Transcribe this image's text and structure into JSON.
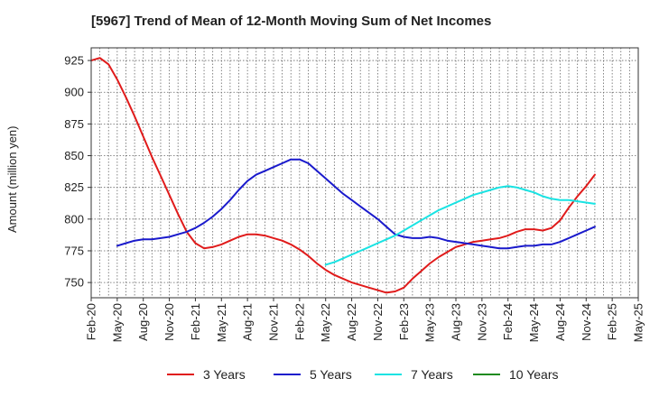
{
  "chart_data": {
    "type": "line",
    "title": "[5967]  Trend of Mean of 12-Month Moving Sum of Net Incomes",
    "xlabel": "",
    "ylabel": "Amount (million yen)",
    "ylim": [
      738,
      935
    ],
    "y_ticks": [
      750,
      775,
      800,
      825,
      850,
      875,
      900,
      925
    ],
    "x_tick_labels": [
      "Feb-20",
      "May-20",
      "Aug-20",
      "Nov-20",
      "Feb-21",
      "May-21",
      "Aug-21",
      "Nov-21",
      "Feb-22",
      "May-22",
      "Aug-22",
      "Nov-22",
      "Feb-23",
      "May-23",
      "Aug-23",
      "Nov-23",
      "Feb-24",
      "May-24",
      "Aug-24",
      "Nov-24",
      "Feb-25",
      "May-25"
    ],
    "x_start": "2020-02",
    "x_end": "2025-05",
    "grid": true,
    "legend_placement": "bottom",
    "series": [
      {
        "name": "3 Years",
        "color": "#e01b1b",
        "points": [
          [
            "2020-02",
            925
          ],
          [
            "2020-03",
            927
          ],
          [
            "2020-04",
            922
          ],
          [
            "2020-05",
            910
          ],
          [
            "2020-06",
            896
          ],
          [
            "2020-07",
            881
          ],
          [
            "2020-08",
            865
          ],
          [
            "2020-09",
            849
          ],
          [
            "2020-10",
            834
          ],
          [
            "2020-11",
            819
          ],
          [
            "2020-12",
            804
          ],
          [
            "2021-01",
            790
          ],
          [
            "2021-02",
            781
          ],
          [
            "2021-03",
            777
          ],
          [
            "2021-04",
            778
          ],
          [
            "2021-05",
            780
          ],
          [
            "2021-06",
            783
          ],
          [
            "2021-07",
            786
          ],
          [
            "2021-08",
            788
          ],
          [
            "2021-09",
            788
          ],
          [
            "2021-10",
            787
          ],
          [
            "2021-11",
            785
          ],
          [
            "2021-12",
            783
          ],
          [
            "2022-01",
            780
          ],
          [
            "2022-02",
            776
          ],
          [
            "2022-03",
            771
          ],
          [
            "2022-04",
            765
          ],
          [
            "2022-05",
            760
          ],
          [
            "2022-06",
            756
          ],
          [
            "2022-07",
            753
          ],
          [
            "2022-08",
            750
          ],
          [
            "2022-09",
            748
          ],
          [
            "2022-10",
            746
          ],
          [
            "2022-11",
            744
          ],
          [
            "2022-12",
            742
          ],
          [
            "2023-01",
            743
          ],
          [
            "2023-02",
            746
          ],
          [
            "2023-03",
            753
          ],
          [
            "2023-04",
            759
          ],
          [
            "2023-05",
            765
          ],
          [
            "2023-06",
            770
          ],
          [
            "2023-07",
            774
          ],
          [
            "2023-08",
            778
          ],
          [
            "2023-09",
            780
          ],
          [
            "2023-10",
            782
          ],
          [
            "2023-11",
            783
          ],
          [
            "2023-12",
            784
          ],
          [
            "2024-01",
            785
          ],
          [
            "2024-02",
            787
          ],
          [
            "2024-03",
            790
          ],
          [
            "2024-04",
            792
          ],
          [
            "2024-05",
            792
          ],
          [
            "2024-06",
            791
          ],
          [
            "2024-07",
            793
          ],
          [
            "2024-08",
            799
          ],
          [
            "2024-09",
            809
          ],
          [
            "2024-10",
            818
          ],
          [
            "2024-11",
            826
          ],
          [
            "2024-12",
            835
          ]
        ]
      },
      {
        "name": "5 Years",
        "color": "#1a1acc",
        "points": [
          [
            "2020-05",
            779
          ],
          [
            "2020-06",
            781
          ],
          [
            "2020-07",
            783
          ],
          [
            "2020-08",
            784
          ],
          [
            "2020-09",
            784
          ],
          [
            "2020-10",
            785
          ],
          [
            "2020-11",
            786
          ],
          [
            "2020-12",
            788
          ],
          [
            "2021-01",
            790
          ],
          [
            "2021-02",
            793
          ],
          [
            "2021-03",
            797
          ],
          [
            "2021-04",
            802
          ],
          [
            "2021-05",
            808
          ],
          [
            "2021-06",
            815
          ],
          [
            "2021-07",
            823
          ],
          [
            "2021-08",
            830
          ],
          [
            "2021-09",
            835
          ],
          [
            "2021-10",
            838
          ],
          [
            "2021-11",
            841
          ],
          [
            "2021-12",
            844
          ],
          [
            "2022-01",
            847
          ],
          [
            "2022-02",
            847
          ],
          [
            "2022-03",
            844
          ],
          [
            "2022-04",
            838
          ],
          [
            "2022-05",
            832
          ],
          [
            "2022-06",
            826
          ],
          [
            "2022-07",
            820
          ],
          [
            "2022-08",
            815
          ],
          [
            "2022-09",
            810
          ],
          [
            "2022-10",
            805
          ],
          [
            "2022-11",
            800
          ],
          [
            "2022-12",
            794
          ],
          [
            "2023-01",
            788
          ],
          [
            "2023-02",
            786
          ],
          [
            "2023-03",
            785
          ],
          [
            "2023-04",
            785
          ],
          [
            "2023-05",
            786
          ],
          [
            "2023-06",
            785
          ],
          [
            "2023-07",
            783
          ],
          [
            "2023-08",
            782
          ],
          [
            "2023-09",
            781
          ],
          [
            "2023-10",
            780
          ],
          [
            "2023-11",
            779
          ],
          [
            "2023-12",
            778
          ],
          [
            "2024-01",
            777
          ],
          [
            "2024-02",
            777
          ],
          [
            "2024-03",
            778
          ],
          [
            "2024-04",
            779
          ],
          [
            "2024-05",
            779
          ],
          [
            "2024-06",
            780
          ],
          [
            "2024-07",
            780
          ],
          [
            "2024-08",
            782
          ],
          [
            "2024-09",
            785
          ],
          [
            "2024-10",
            788
          ],
          [
            "2024-11",
            791
          ],
          [
            "2024-12",
            794
          ]
        ]
      },
      {
        "name": "7 Years",
        "color": "#19e3e3",
        "points": [
          [
            "2022-05",
            764
          ],
          [
            "2022-06",
            766
          ],
          [
            "2022-07",
            769
          ],
          [
            "2022-08",
            772
          ],
          [
            "2022-09",
            775
          ],
          [
            "2022-10",
            778
          ],
          [
            "2022-11",
            781
          ],
          [
            "2022-12",
            784
          ],
          [
            "2023-01",
            787
          ],
          [
            "2023-02",
            791
          ],
          [
            "2023-03",
            795
          ],
          [
            "2023-04",
            799
          ],
          [
            "2023-05",
            803
          ],
          [
            "2023-06",
            807
          ],
          [
            "2023-07",
            810
          ],
          [
            "2023-08",
            813
          ],
          [
            "2023-09",
            816
          ],
          [
            "2023-10",
            819
          ],
          [
            "2023-11",
            821
          ],
          [
            "2023-12",
            823
          ],
          [
            "2024-01",
            825
          ],
          [
            "2024-02",
            826
          ],
          [
            "2024-03",
            825
          ],
          [
            "2024-04",
            823
          ],
          [
            "2024-05",
            821
          ],
          [
            "2024-06",
            818
          ],
          [
            "2024-07",
            816
          ],
          [
            "2024-08",
            815
          ],
          [
            "2024-09",
            815
          ],
          [
            "2024-10",
            814
          ],
          [
            "2024-11",
            813
          ],
          [
            "2024-12",
            812
          ]
        ]
      },
      {
        "name": "10 Years",
        "color": "#1f8a1f",
        "points": []
      }
    ]
  }
}
